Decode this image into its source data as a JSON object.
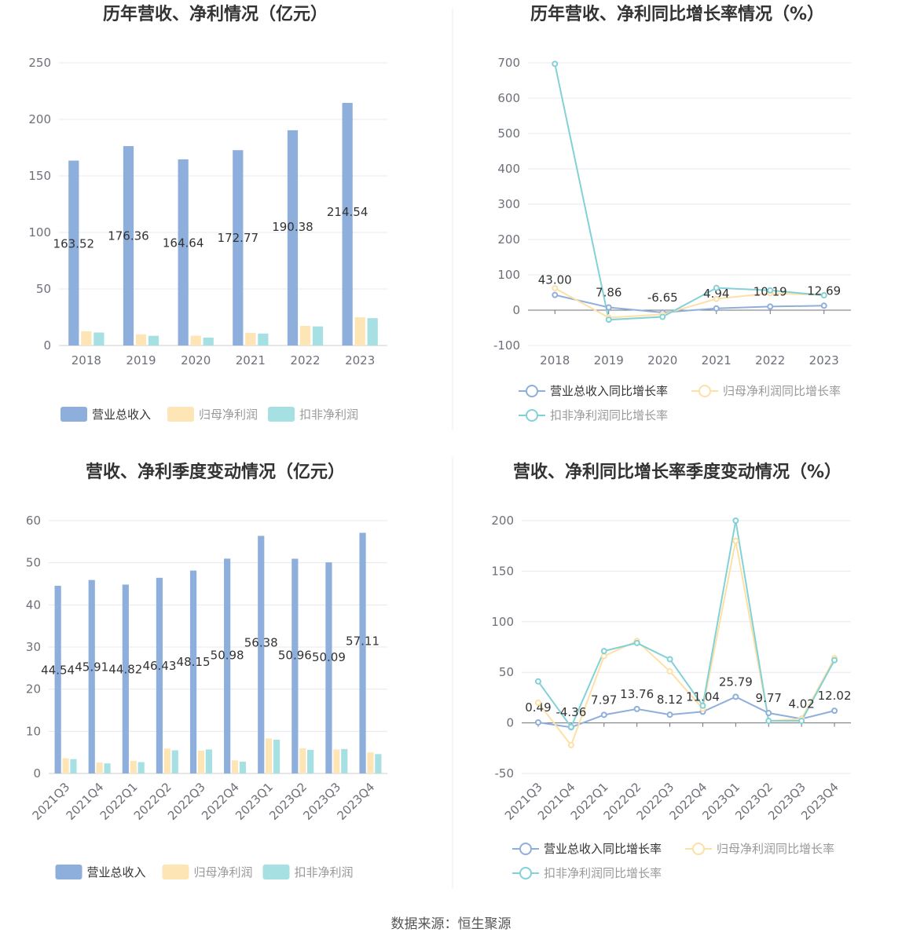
{
  "colors": {
    "revenue": "#8eaedb",
    "net_profit": "#fde5b6",
    "deducted_profit": "#a7e0e3",
    "revenue_line": "#8eaedb",
    "net_line": "#fde0a6",
    "deducted_line": "#82d1d6",
    "grid": "#e6e8f0",
    "axis": "#6e7079"
  },
  "source": "数据来源：恒生聚源",
  "chart_data": [
    {
      "type": "bar",
      "title": "历年营收、净利情况（亿元）",
      "categories": [
        "2018",
        "2019",
        "2020",
        "2021",
        "2022",
        "2023"
      ],
      "ylim": [
        0,
        250
      ],
      "yticks": [
        0,
        50,
        100,
        150,
        200,
        250
      ],
      "grid": true,
      "legend_position": "bottom",
      "series": [
        {
          "name": "营业总收入",
          "values": [
            163.52,
            176.36,
            164.64,
            172.77,
            190.38,
            214.54
          ],
          "labels": [
            "163.52",
            "176.36",
            "164.64",
            "172.77",
            "190.38",
            "214.54"
          ]
        },
        {
          "name": "归母净利润",
          "values": [
            12.6,
            9.9,
            8.7,
            11.2,
            17.4,
            24.9
          ]
        },
        {
          "name": "扣非净利润",
          "values": [
            11.5,
            8.6,
            7.0,
            10.6,
            16.9,
            24.2
          ]
        }
      ]
    },
    {
      "type": "line",
      "title": "历年营收、净利同比增长率情况（%）",
      "categories": [
        "2018",
        "2019",
        "2020",
        "2021",
        "2022",
        "2023"
      ],
      "ylim": [
        -100,
        700
      ],
      "yticks": [
        -100,
        0,
        100,
        200,
        300,
        400,
        500,
        600,
        700
      ],
      "grid": true,
      "legend_position": "bottom",
      "series": [
        {
          "name": "营业总收入同比增长率",
          "values": [
            43.0,
            7.86,
            -6.65,
            4.94,
            10.19,
            12.69
          ],
          "labels": [
            "43.00",
            "7.86",
            "-6.65",
            "4.94",
            "10.19",
            "12.69"
          ]
        },
        {
          "name": "归母净利润同比增长率",
          "values": [
            62,
            -21,
            -12,
            32,
            48,
            43
          ]
        },
        {
          "name": "扣非净利润同比增长率",
          "values": [
            697,
            -27,
            -19,
            63,
            56,
            42
          ]
        }
      ]
    },
    {
      "type": "bar",
      "title": "营收、净利季度变动情况（亿元）",
      "categories": [
        "2021Q3",
        "2021Q4",
        "2022Q1",
        "2022Q2",
        "2022Q3",
        "2022Q4",
        "2023Q1",
        "2023Q2",
        "2023Q3",
        "2023Q4"
      ],
      "ylim": [
        0,
        60
      ],
      "yticks": [
        0,
        10,
        20,
        30,
        40,
        50,
        60
      ],
      "grid": true,
      "legend_position": "bottom",
      "series": [
        {
          "name": "营业总收入",
          "values": [
            44.54,
            45.91,
            44.82,
            46.43,
            48.15,
            50.98,
            56.38,
            50.96,
            50.09,
            57.11
          ],
          "labels": [
            "44.54",
            "45.91",
            "44.82",
            "46.43",
            "48.15",
            "50.98",
            "56.38",
            "50.96",
            "50.09",
            "57.11"
          ]
        },
        {
          "name": "归母净利润",
          "values": [
            3.6,
            2.6,
            3.0,
            5.9,
            5.4,
            3.1,
            8.3,
            6.0,
            5.7,
            5.0
          ]
        },
        {
          "name": "扣非净利润",
          "values": [
            3.4,
            2.4,
            2.7,
            5.5,
            5.7,
            2.8,
            8.0,
            5.6,
            5.8,
            4.6
          ]
        }
      ]
    },
    {
      "type": "line",
      "title": "营收、净利同比增长率季度变动情况（%）",
      "categories": [
        "2021Q3",
        "2021Q4",
        "2022Q1",
        "2022Q2",
        "2022Q3",
        "2022Q4",
        "2023Q1",
        "2023Q2",
        "2023Q3",
        "2023Q4"
      ],
      "ylim": [
        -50,
        200
      ],
      "yticks": [
        -50,
        0,
        50,
        100,
        150,
        200
      ],
      "grid": true,
      "legend_position": "bottom",
      "series": [
        {
          "name": "营业总收入同比增长率",
          "values": [
            0.49,
            -4.36,
            7.97,
            13.76,
            8.12,
            11.04,
            25.79,
            9.77,
            4.02,
            12.02
          ],
          "labels": [
            "0.49",
            "-4.36",
            "7.97",
            "13.76",
            "8.12",
            "11.04",
            "25.79",
            "9.77",
            "4.02",
            "12.02"
          ]
        },
        {
          "name": "归母净利润同比增长率",
          "values": [
            20,
            -22,
            66,
            81,
            51,
            14,
            180,
            2,
            4,
            64
          ]
        },
        {
          "name": "扣非净利润同比增长率",
          "values": [
            41,
            -4,
            71,
            79,
            63,
            17,
            200,
            2,
            2,
            62
          ]
        }
      ]
    }
  ]
}
